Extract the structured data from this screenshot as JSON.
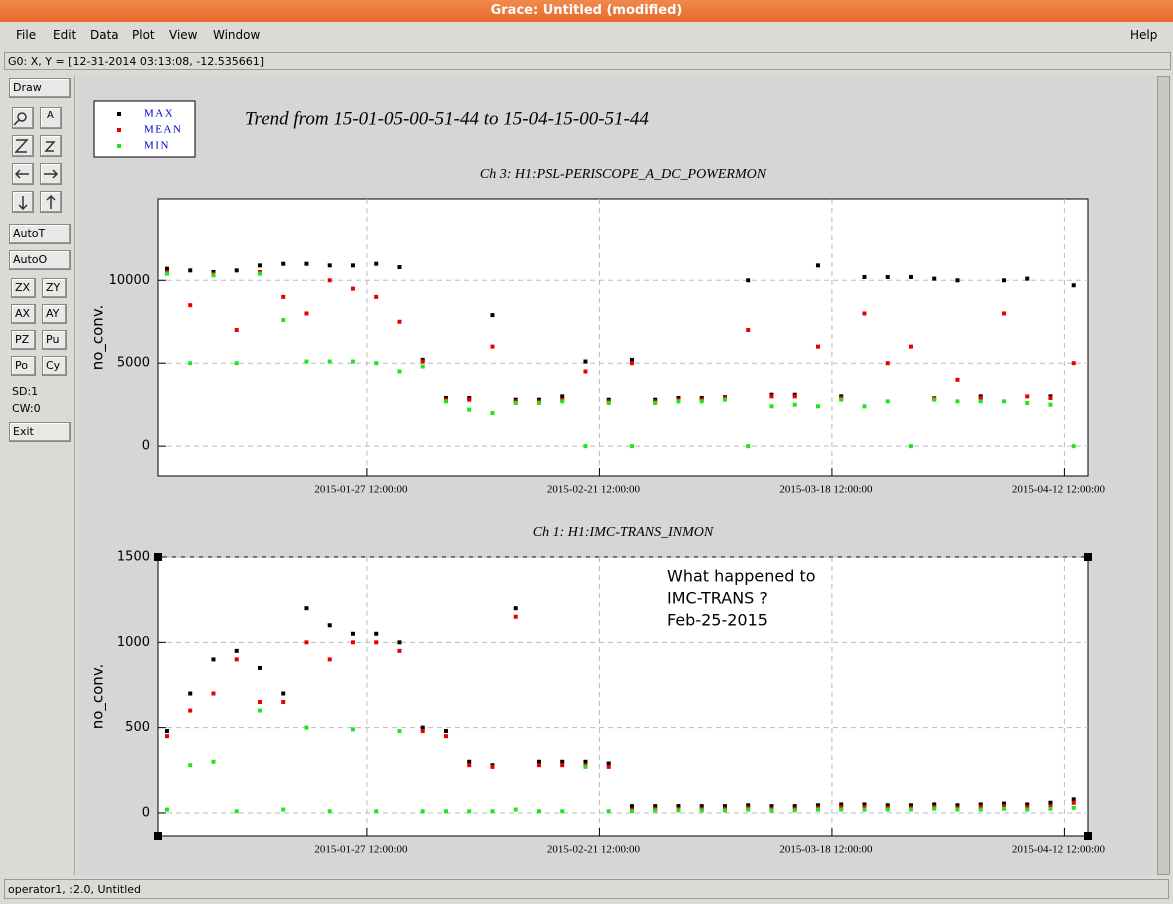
{
  "window": {
    "title": "Grace: Untitled (modified)",
    "menu": [
      "File",
      "Edit",
      "Data",
      "Plot",
      "View",
      "Window"
    ],
    "help": "Help",
    "coords": "G0: X, Y = [12-31-2014 03:13:08, -12.535661]",
    "status": "operator1, :2.0, Untitled"
  },
  "toolbar": {
    "draw": "Draw",
    "buttons_a": [
      "AutoT",
      "AutoO"
    ],
    "buttons_b": [
      [
        "ZX",
        "ZY"
      ],
      [
        "AX",
        "AY"
      ],
      [
        "PZ",
        "Pu"
      ],
      [
        "Po",
        "Cy"
      ]
    ],
    "sd": "SD:1",
    "cw": "CW:0",
    "exit": "Exit"
  },
  "plot_title": "Trend from 15-01-05-00-51-44 to 15-04-15-00-51-44",
  "chart_data": [
    {
      "type": "scatter",
      "title": "Ch 3: H1:PSL-PERISCOPE_A_DC_POWERMON",
      "ylabel": "no_conv.",
      "legend": "upper left",
      "grid": true,
      "xlim": [
        "2015-01-05 00:51:44",
        "2015-04-15 00:51:44"
      ],
      "xticks": [
        "2015-01-27 12:00:00",
        "2015-02-21 12:00:00",
        "2015-03-18 12:00:00",
        "2015-04-12 12:00:00"
      ],
      "ylim": [
        -1800,
        14900
      ],
      "yticks": [
        0,
        5000,
        10000
      ],
      "x": [
        "2015-01-06 00:00:00",
        "2015-01-08 12:00:00",
        "2015-01-11 00:00:00",
        "2015-01-13 12:00:00",
        "2015-01-16 00:00:00",
        "2015-01-18 12:00:00",
        "2015-01-21 00:00:00",
        "2015-01-23 12:00:00",
        "2015-01-26 00:00:00",
        "2015-01-28 12:00:00",
        "2015-01-31 00:00:00",
        "2015-02-02 12:00:00",
        "2015-02-05 00:00:00",
        "2015-02-07 12:00:00",
        "2015-02-10 00:00:00",
        "2015-02-12 12:00:00",
        "2015-02-15 00:00:00",
        "2015-02-17 12:00:00",
        "2015-02-20 00:00:00",
        "2015-02-22 12:00:00",
        "2015-02-25 00:00:00",
        "2015-02-27 12:00:00",
        "2015-03-02 00:00:00",
        "2015-03-04 12:00:00",
        "2015-03-07 00:00:00",
        "2015-03-09 12:00:00",
        "2015-03-12 00:00:00",
        "2015-03-14 12:00:00",
        "2015-03-17 00:00:00",
        "2015-03-19 12:00:00",
        "2015-03-22 00:00:00",
        "2015-03-24 12:00:00",
        "2015-03-27 00:00:00",
        "2015-03-29 12:00:00",
        "2015-04-01 00:00:00",
        "2015-04-03 12:00:00",
        "2015-04-06 00:00:00",
        "2015-04-08 12:00:00",
        "2015-04-11 00:00:00",
        "2015-04-13 12:00:00"
      ],
      "series": [
        {
          "name": "MAX",
          "color": "#000000",
          "values": [
            10700,
            10600,
            10500,
            10600,
            10900,
            11000,
            11000,
            10900,
            10900,
            11000,
            10800,
            5200,
            2900,
            2900,
            7900,
            2800,
            2800,
            3000,
            5100,
            2800,
            5200,
            2800,
            2900,
            2900,
            2950,
            10000,
            3100,
            3100,
            10900,
            3000,
            10200,
            10200,
            10200,
            10100,
            10000,
            3000,
            10000,
            10100,
            3000,
            9700
          ]
        },
        {
          "name": "MEAN",
          "color": "#e60000",
          "values": [
            10500,
            8500,
            10400,
            7000,
            10500,
            9000,
            8000,
            10000,
            9500,
            9000,
            7500,
            5100,
            2800,
            2800,
            6000,
            2700,
            2700,
            2800,
            4500,
            2700,
            5000,
            2700,
            2800,
            2800,
            2900,
            7000,
            3000,
            3000,
            6000,
            2900,
            8000,
            5000,
            6000,
            2900,
            4000,
            2900,
            8000,
            3000,
            2900,
            5000
          ]
        },
        {
          "name": "MIN",
          "color": "#1ee61e",
          "values": [
            10400,
            5000,
            10300,
            5000,
            10400,
            7600,
            5100,
            5100,
            5100,
            5000,
            4500,
            4800,
            2700,
            2200,
            2000,
            2600,
            2600,
            2700,
            0,
            2600,
            0,
            2600,
            2700,
            2700,
            2800,
            0,
            2400,
            2500,
            2400,
            2800,
            2400,
            2700,
            0,
            2800,
            2700,
            2700,
            2700,
            2600,
            2500,
            0
          ]
        }
      ]
    },
    {
      "type": "scatter",
      "title": "Ch 1: H1:IMC-TRANS_INMON",
      "ylabel": "no_conv.",
      "grid": true,
      "annotation": [
        "What happened to",
        "IMC-TRANS ?",
        "Feb-25-2015"
      ],
      "xlim": [
        "2015-01-05 00:51:44",
        "2015-04-15 00:51:44"
      ],
      "xticks": [
        "2015-01-27 12:00:00",
        "2015-02-21 12:00:00",
        "2015-03-18 12:00:00",
        "2015-04-12 12:00:00"
      ],
      "ylim": [
        -135,
        1500
      ],
      "yticks": [
        0,
        500,
        1000,
        1500
      ],
      "x": [
        "2015-01-06 00:00:00",
        "2015-01-08 12:00:00",
        "2015-01-11 00:00:00",
        "2015-01-13 12:00:00",
        "2015-01-16 00:00:00",
        "2015-01-18 12:00:00",
        "2015-01-21 00:00:00",
        "2015-01-23 12:00:00",
        "2015-01-26 00:00:00",
        "2015-01-28 12:00:00",
        "2015-01-31 00:00:00",
        "2015-02-02 12:00:00",
        "2015-02-05 00:00:00",
        "2015-02-07 12:00:00",
        "2015-02-10 00:00:00",
        "2015-02-12 12:00:00",
        "2015-02-15 00:00:00",
        "2015-02-17 12:00:00",
        "2015-02-20 00:00:00",
        "2015-02-22 12:00:00",
        "2015-02-25 00:00:00",
        "2015-02-27 12:00:00",
        "2015-03-02 00:00:00",
        "2015-03-04 12:00:00",
        "2015-03-07 00:00:00",
        "2015-03-09 12:00:00",
        "2015-03-12 00:00:00",
        "2015-03-14 12:00:00",
        "2015-03-17 00:00:00",
        "2015-03-19 12:00:00",
        "2015-03-22 00:00:00",
        "2015-03-24 12:00:00",
        "2015-03-27 00:00:00",
        "2015-03-29 12:00:00",
        "2015-04-01 00:00:00",
        "2015-04-03 12:00:00",
        "2015-04-06 00:00:00",
        "2015-04-08 12:00:00",
        "2015-04-11 00:00:00",
        "2015-04-13 12:00:00"
      ],
      "series": [
        {
          "name": "MAX",
          "color": "#000000",
          "values": [
            480,
            700,
            900,
            950,
            850,
            700,
            1200,
            1100,
            1050,
            1050,
            1000,
            500,
            480,
            300,
            280,
            1200,
            300,
            300,
            300,
            290,
            40,
            40,
            40,
            40,
            40,
            45,
            40,
            40,
            45,
            50,
            50,
            45,
            45,
            50,
            45,
            50,
            55,
            50,
            60,
            80
          ]
        },
        {
          "name": "MEAN",
          "color": "#e60000",
          "values": [
            450,
            600,
            700,
            900,
            650,
            650,
            1000,
            900,
            1000,
            1000,
            950,
            480,
            450,
            280,
            270,
            1150,
            280,
            280,
            280,
            270,
            20,
            25,
            25,
            25,
            25,
            30,
            25,
            25,
            30,
            35,
            35,
            30,
            30,
            35,
            30,
            35,
            40,
            35,
            40,
            60
          ]
        },
        {
          "name": "MIN",
          "color": "#1ee61e",
          "values": [
            20,
            280,
            300,
            10,
            600,
            20,
            500,
            10,
            490,
            10,
            480,
            10,
            10,
            10,
            10,
            20,
            10,
            10,
            270,
            10,
            10,
            15,
            15,
            15,
            15,
            20,
            15,
            15,
            20,
            20,
            20,
            20,
            20,
            25,
            20,
            20,
            25,
            20,
            25,
            30
          ]
        }
      ]
    }
  ]
}
